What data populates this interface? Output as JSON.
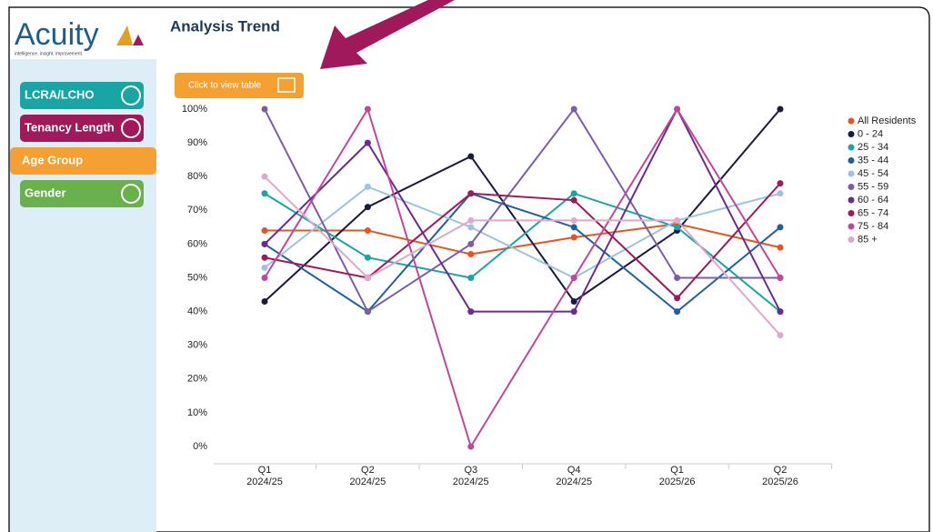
{
  "logo": {
    "name": "Acuity",
    "tagline": "intelligence. insight. improvement."
  },
  "nav": {
    "items": [
      "LCRA/LCHO",
      "Tenancy Length",
      "Age Group",
      "Gender"
    ]
  },
  "button": {
    "label": "Click to view table"
  },
  "chart_data": {
    "type": "line",
    "title": "Analysis Trend",
    "categories": [
      [
        "Q1",
        "2024/25"
      ],
      [
        "Q2",
        "2024/25"
      ],
      [
        "Q3",
        "2024/25"
      ],
      [
        "Q4",
        "2024/25"
      ],
      [
        "Q1",
        "2025/26"
      ],
      [
        "Q2",
        "2025/26"
      ]
    ],
    "ylim": [
      0,
      100
    ],
    "yticks": [
      {
        "value": 0,
        "label": "0%"
      },
      {
        "value": 10,
        "label": "10%"
      },
      {
        "value": 20,
        "label": "20%"
      },
      {
        "value": 30,
        "label": "30%"
      },
      {
        "value": 40,
        "label": "40%"
      },
      {
        "value": 50,
        "label": "50%"
      },
      {
        "value": 60,
        "label": "60%"
      },
      {
        "value": 70,
        "label": "70%"
      },
      {
        "value": 80,
        "label": "80%"
      },
      {
        "value": 90,
        "label": "90%"
      },
      {
        "value": 100,
        "label": "100%"
      }
    ],
    "grid": false,
    "legend": "right",
    "series": [
      {
        "name": "All Residents",
        "color": "#e8541e",
        "values": [
          64,
          64,
          57,
          62,
          66,
          59
        ]
      },
      {
        "name": "0 - 24",
        "color": "#1a1a3e",
        "values": [
          43,
          71,
          86,
          43,
          64,
          100
        ]
      },
      {
        "name": "25 - 34",
        "color": "#1aa5a5",
        "values": [
          75,
          56,
          50,
          75,
          65,
          40
        ]
      },
      {
        "name": "35 - 44",
        "color": "#1f5fa0",
        "values": [
          60,
          40,
          75,
          65,
          40,
          65
        ]
      },
      {
        "name": "45 - 54",
        "color": "#9cc3e0",
        "values": [
          53,
          77,
          65,
          50,
          67,
          75
        ]
      },
      {
        "name": "55 - 59",
        "color": "#7b5ea7",
        "values": [
          100,
          40,
          60,
          100,
          50,
          50
        ]
      },
      {
        "name": "60 - 64",
        "color": "#6b2c91",
        "values": [
          60,
          90,
          40,
          40,
          100,
          40
        ]
      },
      {
        "name": "65 - 74",
        "color": "#a0195a",
        "values": [
          56,
          50,
          75,
          73,
          44,
          78
        ]
      },
      {
        "name": "75 - 84",
        "color": "#c0489a",
        "values": [
          50,
          100,
          0,
          50,
          100,
          50
        ]
      },
      {
        "name": "85 +",
        "color": "#e0a8cc",
        "values": [
          80,
          50,
          67,
          67,
          67,
          33
        ]
      }
    ]
  }
}
